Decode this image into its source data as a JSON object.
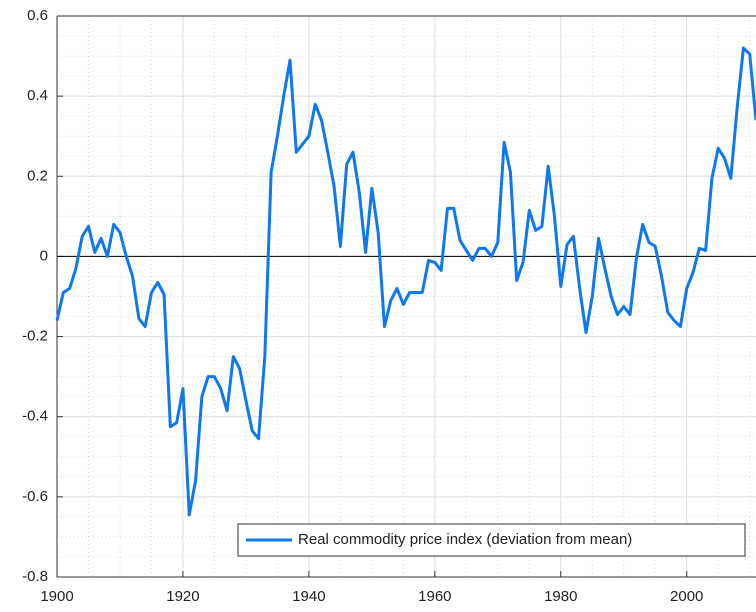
{
  "chart_data": {
    "type": "line",
    "x": [
      1900,
      1901,
      1902,
      1903,
      1904,
      1905,
      1906,
      1907,
      1908,
      1909,
      1910,
      1911,
      1912,
      1913,
      1914,
      1915,
      1916,
      1917,
      1918,
      1919,
      1920,
      1921,
      1922,
      1923,
      1924,
      1925,
      1926,
      1927,
      1928,
      1929,
      1930,
      1931,
      1932,
      1933,
      1934,
      1935,
      1936,
      1937,
      1938,
      1939,
      1940,
      1941,
      1942,
      1943,
      1944,
      1945,
      1946,
      1947,
      1948,
      1949,
      1950,
      1951,
      1952,
      1953,
      1954,
      1955,
      1956,
      1957,
      1958,
      1959,
      1960,
      1961,
      1962,
      1963,
      1964,
      1965,
      1966,
      1967,
      1968,
      1969,
      1970,
      1971,
      1972,
      1973,
      1974,
      1975,
      1976,
      1977,
      1978,
      1979,
      1980,
      1981,
      1982,
      1983,
      1984,
      1985,
      1986,
      1987,
      1988,
      1989,
      1990,
      1991,
      1992,
      1993,
      1994,
      1995,
      1996,
      1997,
      1998,
      1999,
      2000,
      2001,
      2002,
      2003,
      2004,
      2005,
      2006,
      2007,
      2008,
      2009,
      2010,
      2011
    ],
    "series": [
      {
        "name": "Real commodity price index (deviation from mean)",
        "color": "#0f78f0",
        "values": [
          -0.16,
          -0.09,
          -0.08,
          -0.03,
          0.05,
          0.075,
          0.01,
          0.045,
          0.0,
          0.08,
          0.06,
          0.0,
          -0.05,
          -0.155,
          -0.175,
          -0.09,
          -0.065,
          -0.095,
          -0.425,
          -0.415,
          -0.33,
          -0.645,
          -0.56,
          -0.35,
          -0.3,
          -0.3,
          -0.33,
          -0.385,
          -0.25,
          -0.28,
          -0.36,
          -0.435,
          -0.455,
          -0.25,
          0.21,
          0.3,
          0.4,
          0.49,
          0.26,
          0.28,
          0.3,
          0.38,
          0.34,
          0.26,
          0.175,
          0.025,
          0.23,
          0.26,
          0.16,
          0.01,
          0.17,
          0.06,
          -0.175,
          -0.11,
          -0.08,
          -0.12,
          -0.09,
          -0.09,
          -0.09,
          -0.01,
          -0.015,
          -0.035,
          0.12,
          0.12,
          0.04,
          0.015,
          -0.01,
          0.02,
          0.02,
          0.0,
          0.035,
          0.285,
          0.21,
          -0.06,
          -0.015,
          0.115,
          0.065,
          0.075,
          0.225,
          0.1,
          -0.075,
          0.03,
          0.05,
          -0.08,
          -0.19,
          -0.1,
          0.045,
          -0.03,
          -0.1,
          -0.145,
          -0.125,
          -0.145,
          -0.005,
          0.08,
          0.035,
          0.025,
          -0.05,
          -0.14,
          -0.16,
          -0.175,
          -0.08,
          -0.04,
          0.02,
          0.015,
          0.195,
          0.27,
          0.245,
          0.195,
          0.37,
          0.52,
          0.505,
          0.34
        ]
      }
    ],
    "xlim": [
      1900,
      2011
    ],
    "ylim": [
      -0.8,
      0.6
    ],
    "xticks": [
      1900,
      1920,
      1940,
      1960,
      1980,
      2000
    ],
    "yticks": [
      -0.8,
      -0.6,
      -0.4,
      -0.2,
      0,
      0.2,
      0.4,
      0.6
    ],
    "grid": true,
    "minor_grid": true,
    "zero_line": true,
    "legend": "lower right"
  }
}
